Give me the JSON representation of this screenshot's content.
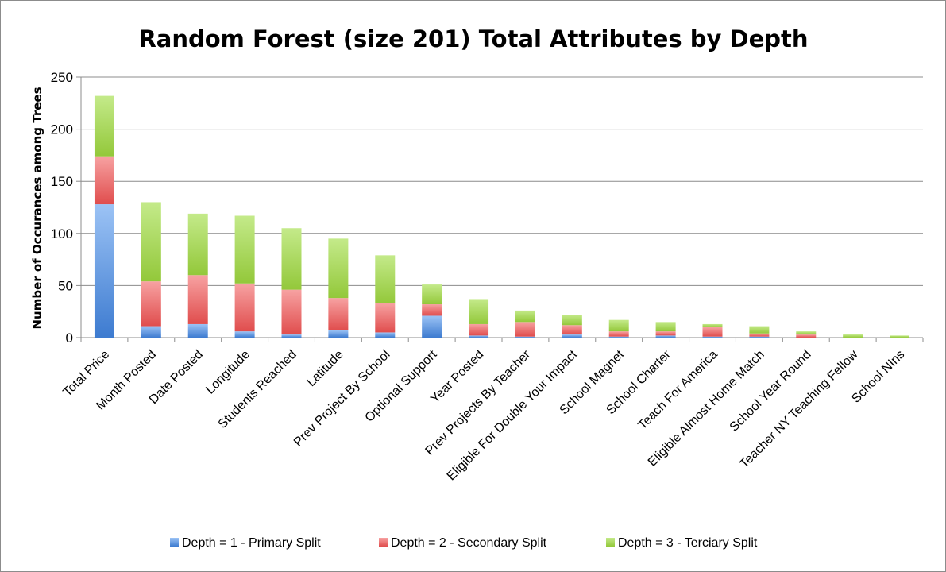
{
  "chart_data": {
    "type": "bar",
    "stacked": true,
    "title": "Random Forest (size 201) Total Attributes by Depth",
    "xlabel": "",
    "ylabel": "Number of Occurances among Trees",
    "ylim": [
      0,
      250
    ],
    "yticks": [
      0,
      50,
      100,
      150,
      200,
      250
    ],
    "grid": true,
    "legend": "bottom",
    "categories": [
      "Total Price",
      "Month Posted",
      "Date Posted",
      "Longitude",
      "Students Reached",
      "Latitude",
      "Prev Project By School",
      "Optional Support",
      "Year Posted",
      "Prev Projects By Teacher",
      "Eligible For Double Your Impact",
      "School Magnet",
      "School Charter",
      "Teach For America",
      "Eligible Almost Home Match",
      "School Year Round",
      "Teacher NY Teaching Fellow",
      "School NIns"
    ],
    "series": [
      {
        "name": "Depth = 1 - Primary Split",
        "color": "#4a86d6",
        "values": [
          128,
          11,
          13,
          6,
          3,
          7,
          5,
          21,
          2,
          1,
          3,
          1,
          2,
          1,
          1,
          0,
          0,
          0
        ]
      },
      {
        "name": "Depth = 2 - Secondary Split",
        "color": "#e05555",
        "values": [
          46,
          43,
          47,
          46,
          43,
          31,
          28,
          11,
          11,
          14,
          9,
          5,
          4,
          9,
          3,
          3,
          0,
          0
        ]
      },
      {
        "name": "Depth = 3 - Terciary Split",
        "color": "#9acd3c",
        "values": [
          58,
          76,
          59,
          65,
          59,
          57,
          46,
          19,
          24,
          11,
          10,
          11,
          9,
          3,
          7,
          3,
          3,
          2
        ]
      }
    ]
  }
}
